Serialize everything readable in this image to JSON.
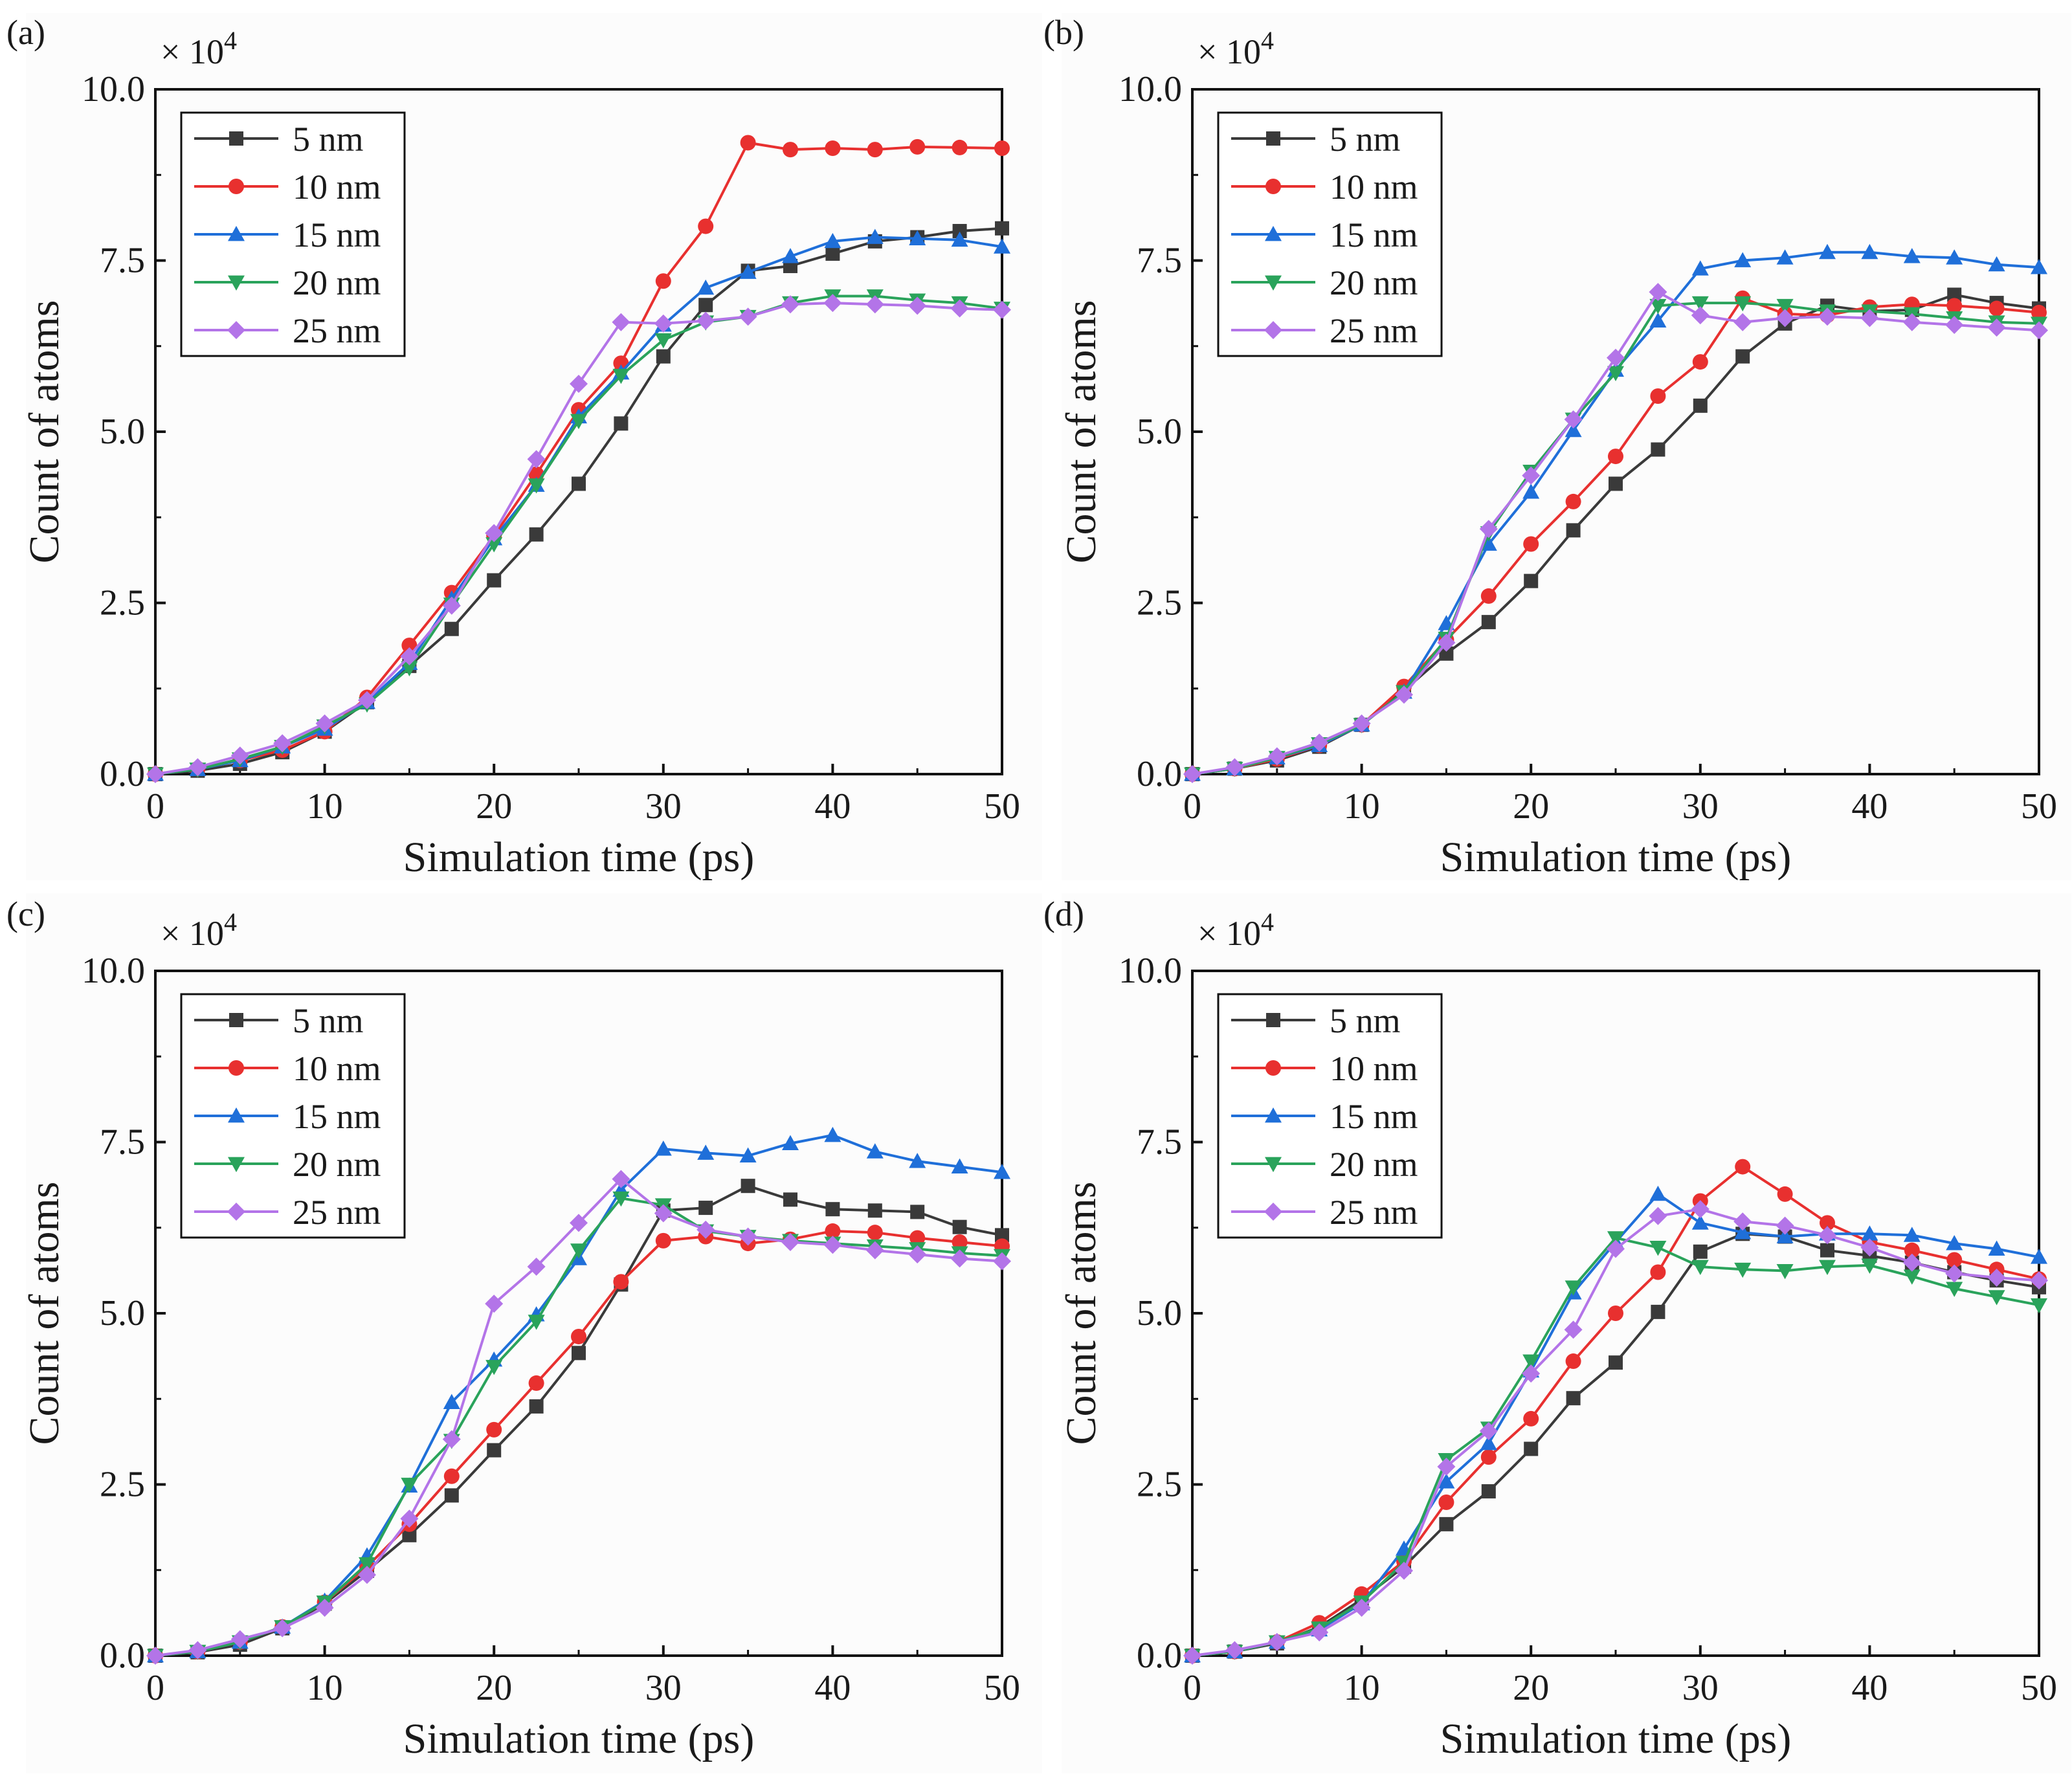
{
  "figure": {
    "shared": {
      "xlabel": "Simulation time (ps)",
      "ylabel": "Count of atoms",
      "multiplier": "× 10",
      "exponent": "4",
      "xlim": [
        0,
        50
      ],
      "ylim": [
        0,
        10
      ],
      "xticks": [
        "0",
        "10",
        "20",
        "30",
        "40",
        "50"
      ],
      "yticks": [
        "0.0",
        "2.5",
        "5.0",
        "7.5",
        "10.0"
      ],
      "xtick_values": [
        0,
        10,
        20,
        30,
        40,
        50
      ],
      "ytick_values": [
        0,
        2.5,
        5,
        7.5,
        10
      ],
      "legend_labels": [
        "5 nm",
        "10 nm",
        "15 nm",
        "20 nm",
        "25 nm"
      ],
      "colors": [
        "#3a3a3a",
        "#e8302f",
        "#1f6fd9",
        "#2aa35b",
        "#b374e8"
      ],
      "markers": [
        "square",
        "circle",
        "triangle-up",
        "triangle-down",
        "diamond"
      ]
    }
  },
  "chart_data": [
    {
      "panel": "(a)",
      "type": "line",
      "xlabel": "Simulation time (ps)",
      "ylabel": "Count of atoms",
      "y_scale_note": "× 10^4",
      "xlim": [
        0,
        50
      ],
      "ylim": [
        0,
        10
      ],
      "legend_position": "top-left",
      "x": [
        0,
        2.5,
        5,
        7.5,
        10,
        12.5,
        15,
        17.5,
        20,
        22.5,
        25,
        27.5,
        30,
        32.5,
        35,
        37.5,
        40,
        42.5,
        45,
        47.5,
        50
      ],
      "series": [
        {
          "name": "5 nm",
          "values": [
            0,
            0.05,
            0.15,
            0.32,
            0.62,
            1.05,
            1.58,
            2.12,
            2.83,
            3.5,
            4.24,
            5.12,
            6.1,
            6.85,
            7.35,
            7.42,
            7.6,
            7.78,
            7.84,
            7.93,
            7.97
          ]
        },
        {
          "name": "10 nm",
          "values": [
            0,
            0.08,
            0.2,
            0.35,
            0.62,
            1.12,
            1.88,
            2.65,
            3.48,
            4.38,
            5.32,
            6.0,
            7.2,
            8.0,
            9.22,
            9.12,
            9.14,
            9.12,
            9.16,
            9.15,
            9.14
          ]
        },
        {
          "name": "15 nm",
          "values": [
            0,
            0.07,
            0.2,
            0.4,
            0.66,
            1.05,
            1.62,
            2.56,
            3.44,
            4.22,
            5.22,
            5.86,
            6.56,
            7.1,
            7.33,
            7.56,
            7.78,
            7.84,
            7.82,
            7.8,
            7.7
          ]
        },
        {
          "name": "20 nm",
          "values": [
            0,
            0.07,
            0.22,
            0.4,
            0.7,
            1.02,
            1.55,
            2.48,
            3.36,
            4.22,
            5.16,
            5.82,
            6.34,
            6.6,
            6.68,
            6.88,
            6.98,
            6.98,
            6.92,
            6.88,
            6.8
          ]
        },
        {
          "name": "25 nm",
          "values": [
            0,
            0.1,
            0.27,
            0.45,
            0.74,
            1.08,
            1.72,
            2.46,
            3.52,
            4.6,
            5.7,
            6.6,
            6.58,
            6.62,
            6.68,
            6.86,
            6.88,
            6.86,
            6.84,
            6.8,
            6.78
          ]
        }
      ]
    },
    {
      "panel": "(b)",
      "type": "line",
      "xlabel": "Simulation time (ps)",
      "ylabel": "Count of atoms",
      "y_scale_note": "× 10^4",
      "xlim": [
        0,
        50
      ],
      "ylim": [
        0,
        10
      ],
      "legend_position": "top-left",
      "x": [
        0,
        2.5,
        5,
        7.5,
        10,
        12.5,
        15,
        17.5,
        20,
        22.5,
        25,
        27.5,
        30,
        32.5,
        35,
        37.5,
        40,
        42.5,
        45,
        47.5,
        50
      ],
      "series": [
        {
          "name": "5 nm",
          "values": [
            0,
            0.08,
            0.2,
            0.4,
            0.72,
            1.22,
            1.76,
            2.22,
            2.82,
            3.56,
            4.24,
            4.74,
            5.38,
            6.1,
            6.58,
            6.84,
            6.76,
            6.78,
            7.0,
            6.88,
            6.8
          ]
        },
        {
          "name": "10 nm",
          "values": [
            0,
            0.08,
            0.22,
            0.42,
            0.72,
            1.28,
            1.96,
            2.6,
            3.36,
            3.98,
            4.64,
            5.52,
            6.02,
            6.95,
            6.72,
            6.7,
            6.82,
            6.86,
            6.84,
            6.8,
            6.74
          ]
        },
        {
          "name": "15 nm",
          "values": [
            0,
            0.08,
            0.24,
            0.42,
            0.72,
            1.2,
            2.2,
            3.36,
            4.12,
            5.02,
            5.9,
            6.62,
            7.38,
            7.5,
            7.54,
            7.62,
            7.62,
            7.56,
            7.54,
            7.44,
            7.4
          ]
        },
        {
          "name": "20 nm",
          "values": [
            0,
            0.08,
            0.24,
            0.44,
            0.72,
            1.2,
            1.98,
            3.52,
            4.42,
            5.18,
            5.86,
            6.84,
            6.88,
            6.88,
            6.84,
            6.76,
            6.76,
            6.72,
            6.66,
            6.6,
            6.58
          ]
        },
        {
          "name": "25 nm",
          "values": [
            0,
            0.1,
            0.26,
            0.46,
            0.74,
            1.16,
            1.92,
            3.58,
            4.36,
            5.18,
            6.08,
            7.04,
            6.7,
            6.6,
            6.66,
            6.68,
            6.66,
            6.6,
            6.56,
            6.52,
            6.48
          ]
        }
      ]
    },
    {
      "panel": "(c)",
      "type": "line",
      "xlabel": "Simulation time (ps)",
      "ylabel": "Count of atoms",
      "y_scale_note": "× 10^4",
      "xlim": [
        0,
        50
      ],
      "ylim": [
        0,
        10
      ],
      "legend_position": "top-left",
      "x": [
        0,
        2.5,
        5,
        7.5,
        10,
        12.5,
        15,
        17.5,
        20,
        22.5,
        25,
        27.5,
        30,
        32.5,
        35,
        37.5,
        40,
        42.5,
        45,
        47.5,
        50
      ],
      "series": [
        {
          "name": "5 nm",
          "values": [
            0,
            0.05,
            0.16,
            0.4,
            0.76,
            1.24,
            1.76,
            2.34,
            3.0,
            3.64,
            4.42,
            5.42,
            6.5,
            6.54,
            6.86,
            6.66,
            6.52,
            6.5,
            6.48,
            6.26,
            6.14
          ]
        },
        {
          "name": "10 nm",
          "values": [
            0,
            0.06,
            0.2,
            0.42,
            0.78,
            1.3,
            1.92,
            2.62,
            3.3,
            3.98,
            4.66,
            5.46,
            6.06,
            6.12,
            6.02,
            6.08,
            6.2,
            6.18,
            6.1,
            6.04,
            5.98
          ]
        },
        {
          "name": "15 nm",
          "values": [
            0,
            0.06,
            0.2,
            0.42,
            0.8,
            1.46,
            2.48,
            3.7,
            4.32,
            4.98,
            5.8,
            6.8,
            7.4,
            7.34,
            7.3,
            7.48,
            7.6,
            7.36,
            7.22,
            7.14,
            7.06
          ]
        },
        {
          "name": "20 nm",
          "values": [
            0,
            0.06,
            0.2,
            0.42,
            0.78,
            1.34,
            2.5,
            3.14,
            4.22,
            4.88,
            5.92,
            6.68,
            6.58,
            6.2,
            6.12,
            6.06,
            6.02,
            5.98,
            5.94,
            5.88,
            5.84
          ]
        },
        {
          "name": "25 nm",
          "values": [
            0,
            0.08,
            0.24,
            0.4,
            0.7,
            1.18,
            2.0,
            3.16,
            5.14,
            5.68,
            6.32,
            6.96,
            6.46,
            6.22,
            6.12,
            6.04,
            6.0,
            5.92,
            5.86,
            5.8,
            5.76
          ]
        }
      ]
    },
    {
      "panel": "(d)",
      "type": "line",
      "xlabel": "Simulation time (ps)",
      "ylabel": "Count of atoms",
      "y_scale_note": "× 10^4",
      "xlim": [
        0,
        50
      ],
      "ylim": [
        0,
        10
      ],
      "legend_position": "top-left",
      "x": [
        0,
        2.5,
        5,
        7.5,
        10,
        12.5,
        15,
        17.5,
        20,
        22.5,
        25,
        27.5,
        30,
        32.5,
        35,
        37.5,
        40,
        42.5,
        45,
        47.5,
        50
      ],
      "series": [
        {
          "name": "5 nm",
          "values": [
            0,
            0.06,
            0.18,
            0.42,
            0.82,
            1.3,
            1.92,
            2.4,
            3.02,
            3.76,
            4.28,
            5.02,
            5.9,
            6.16,
            6.12,
            5.92,
            5.84,
            5.74,
            5.6,
            5.48,
            5.38
          ]
        },
        {
          "name": "10 nm",
          "values": [
            0,
            0.06,
            0.2,
            0.48,
            0.9,
            1.38,
            2.24,
            2.9,
            3.46,
            4.3,
            5.0,
            5.6,
            6.64,
            7.14,
            6.74,
            6.32,
            6.04,
            5.92,
            5.78,
            5.64,
            5.5
          ]
        },
        {
          "name": "15 nm",
          "values": [
            0,
            0.06,
            0.2,
            0.38,
            0.76,
            1.56,
            2.54,
            3.1,
            4.16,
            5.3,
            6.04,
            6.74,
            6.32,
            6.18,
            6.12,
            6.16,
            6.16,
            6.14,
            6.02,
            5.94,
            5.82
          ]
        },
        {
          "name": "20 nm",
          "values": [
            0,
            0.06,
            0.2,
            0.4,
            0.78,
            1.36,
            2.86,
            3.32,
            4.3,
            5.38,
            6.1,
            5.96,
            5.68,
            5.64,
            5.62,
            5.68,
            5.7,
            5.54,
            5.36,
            5.24,
            5.12
          ]
        },
        {
          "name": "25 nm",
          "values": [
            0,
            0.08,
            0.2,
            0.34,
            0.7,
            1.24,
            2.76,
            3.28,
            4.12,
            4.76,
            5.94,
            6.42,
            6.52,
            6.34,
            6.28,
            6.14,
            5.96,
            5.74,
            5.58,
            5.52,
            5.48
          ]
        }
      ]
    }
  ]
}
